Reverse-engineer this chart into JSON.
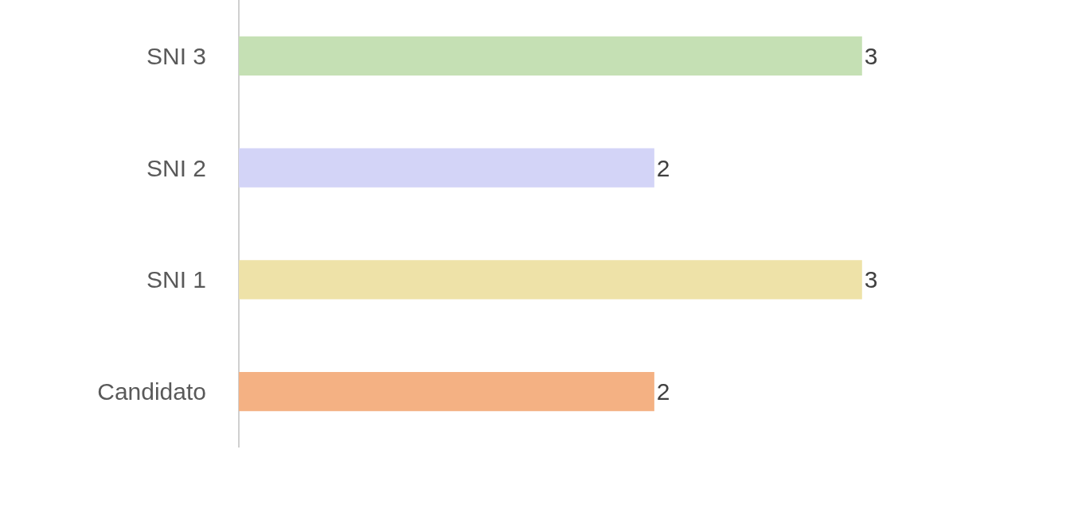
{
  "chart_data": {
    "type": "bar",
    "orientation": "horizontal",
    "categories": [
      "SNI 3",
      "SNI 2",
      "SNI 1",
      "Candidato"
    ],
    "values": [
      3,
      2,
      3,
      2
    ],
    "colors": [
      "#c5e0b4",
      "#d3d4f7",
      "#eee2a8",
      "#f4b183"
    ],
    "data_labels": true,
    "tick_labels": "y"
  }
}
